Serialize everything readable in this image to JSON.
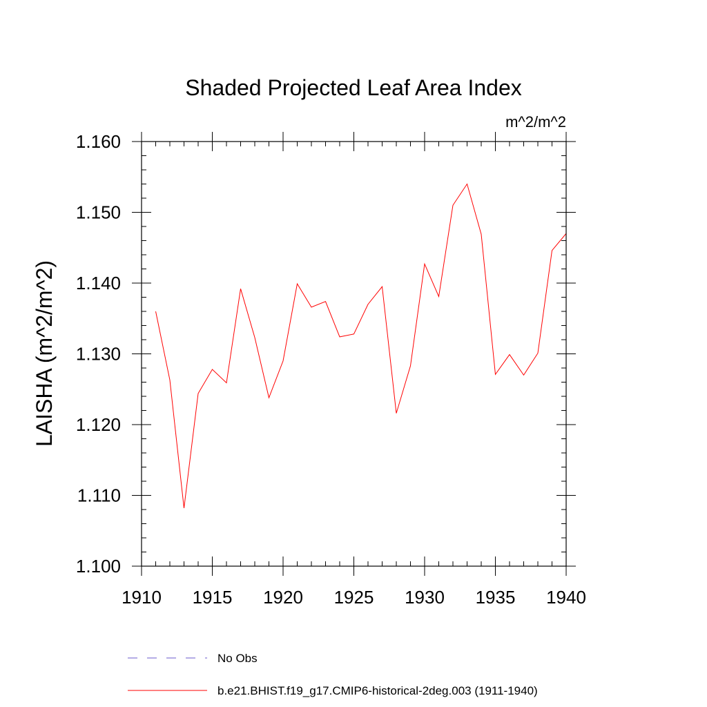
{
  "chart_data": {
    "type": "line",
    "title": "Shaded Projected Leaf Area Index",
    "units_label": "m^2/m^2",
    "xlabel": "",
    "ylabel": "LAISHA  (m^2/m^2)",
    "xlim": [
      1910,
      1940
    ],
    "ylim": [
      1.1,
      1.16
    ],
    "x_ticks": [
      "1910",
      "1915",
      "1920",
      "1925",
      "1930",
      "1935",
      "1940"
    ],
    "y_ticks": [
      "1.100",
      "1.110",
      "1.120",
      "1.130",
      "1.140",
      "1.150",
      "1.160"
    ],
    "grid": false,
    "legend_position": "bottom",
    "legend": [
      {
        "label": "No Obs",
        "color": "#6a5acd",
        "style": "dashed"
      },
      {
        "label": "b.e21.BHIST.f19_g17.CMIP6-historical-2deg.003 (1911-1940)",
        "color": "#ff0000",
        "style": "solid"
      }
    ],
    "series": [
      {
        "name": "b.e21.BHIST.f19_g17.CMIP6-historical-2deg.003 (1911-1940)",
        "color": "#ff0000",
        "x": [
          1911,
          1912,
          1913,
          1914,
          1915,
          1916,
          1917,
          1918,
          1919,
          1920,
          1921,
          1922,
          1923,
          1924,
          1925,
          1926,
          1927,
          1928,
          1929,
          1930,
          1931,
          1932,
          1933,
          1934,
          1935,
          1936,
          1937,
          1938,
          1939,
          1940
        ],
        "values": [
          1.136,
          1.1263,
          1.1082,
          1.1244,
          1.1278,
          1.1259,
          1.1392,
          1.1323,
          1.1238,
          1.129,
          1.1399,
          1.1366,
          1.1374,
          1.1324,
          1.1328,
          1.137,
          1.1395,
          1.1216,
          1.1283,
          1.1427,
          1.1381,
          1.151,
          1.154,
          1.1469,
          1.1271,
          1.1299,
          1.127,
          1.1301,
          1.1446,
          1.147
        ]
      }
    ]
  }
}
